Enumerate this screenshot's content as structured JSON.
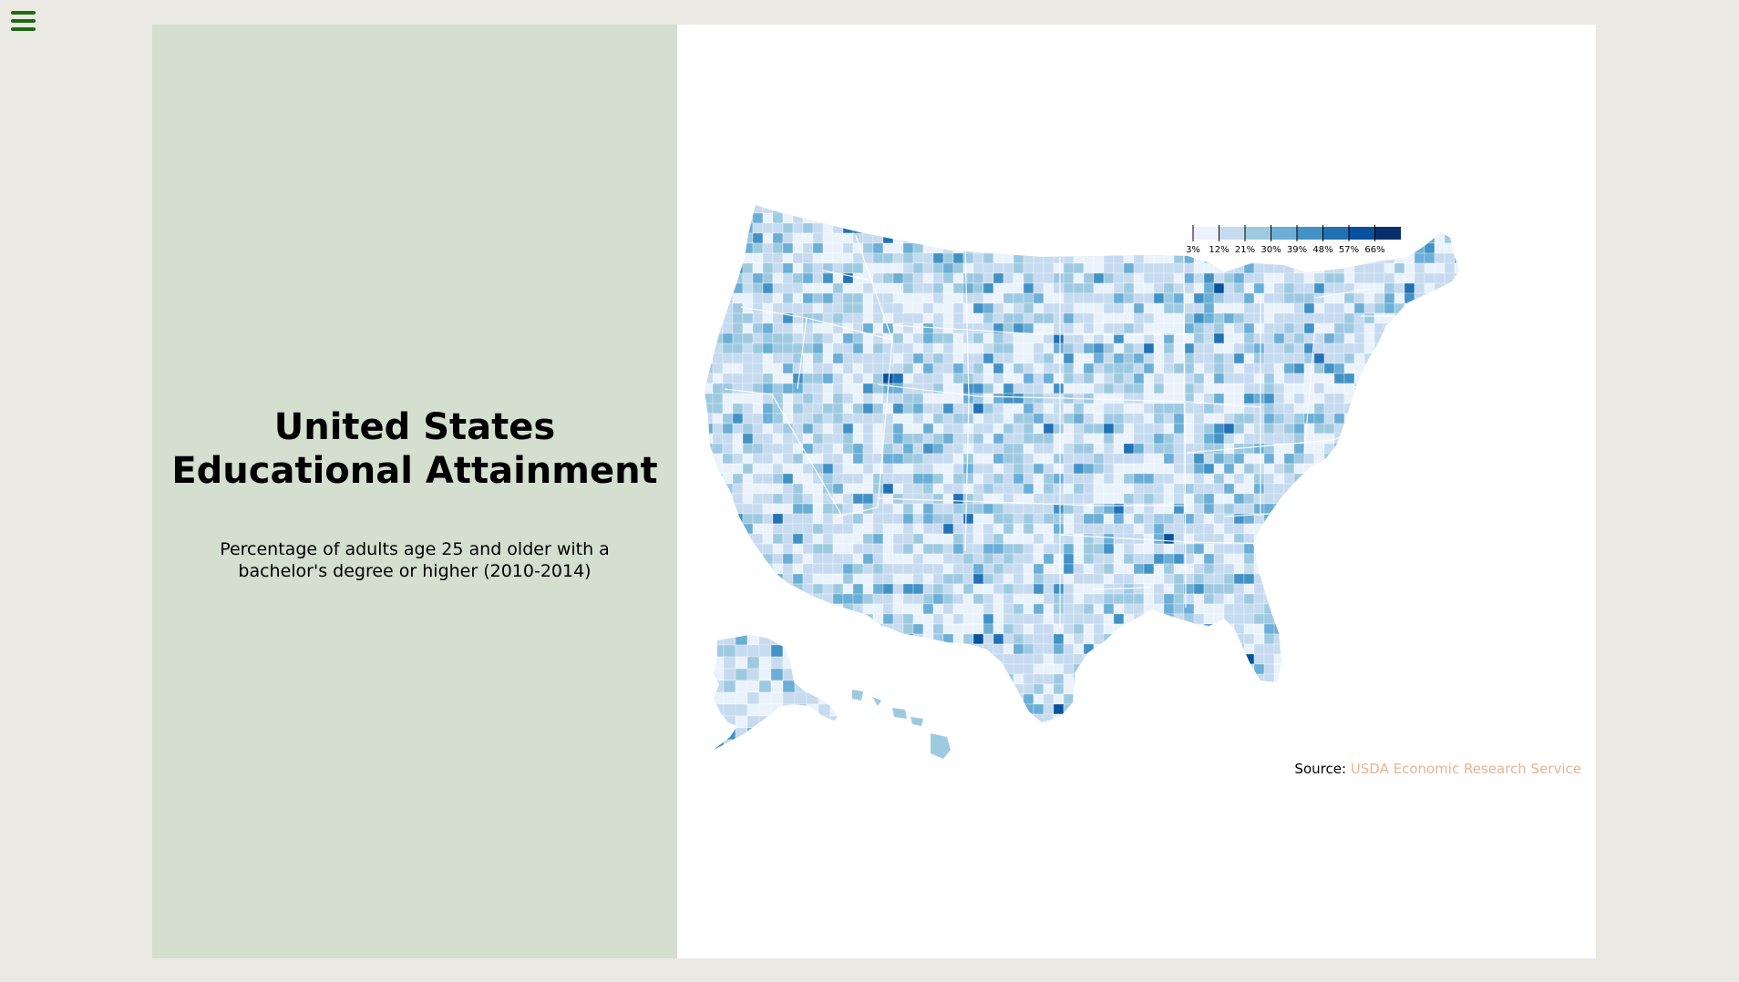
{
  "menu": {
    "icon": "hamburger-menu-icon",
    "color": "#1e6a14"
  },
  "title": {
    "line1": "United States",
    "line2": "Educational Attainment"
  },
  "subtitle": "Percentage of adults age 25 and older with a bachelor's degree or higher (2010-2014)",
  "legend": {
    "ticks": [
      "3%",
      "12%",
      "21%",
      "30%",
      "39%",
      "48%",
      "57%",
      "66%"
    ],
    "colors": [
      "#eaf2fb",
      "#c6dbef",
      "#9ecae1",
      "#6baed6",
      "#4292c6",
      "#2171b5",
      "#08519c",
      "#08306b"
    ]
  },
  "source": {
    "label": "Source:",
    "link_text": "USDA Economic Research Service"
  },
  "colors": {
    "page_background": "#eae9e4",
    "panel_background": "#d4dfcf",
    "link": "#e8b48f"
  }
}
